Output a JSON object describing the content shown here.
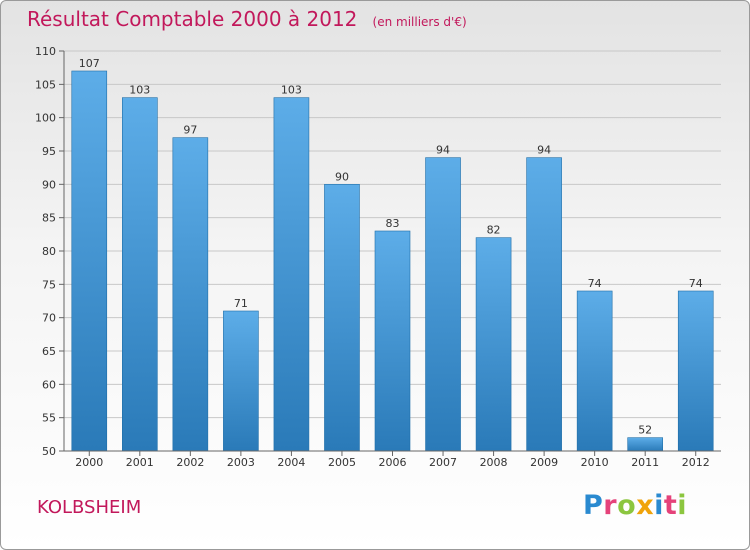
{
  "chart_data": {
    "type": "bar",
    "title": "Résultat Comptable 2000 à 2012",
    "subtitle": "(en milliers d'€)",
    "categories": [
      "2000",
      "2001",
      "2002",
      "2003",
      "2004",
      "2005",
      "2006",
      "2007",
      "2008",
      "2009",
      "2010",
      "2011",
      "2012"
    ],
    "values": [
      107,
      103,
      97,
      71,
      103,
      90,
      83,
      94,
      82,
      94,
      74,
      52,
      74
    ],
    "ylim": [
      50,
      110
    ],
    "yticks": [
      50,
      55,
      60,
      65,
      70,
      75,
      80,
      85,
      90,
      95,
      100,
      105,
      110
    ],
    "grid": true,
    "colors": {
      "bar_top": "#5dade8",
      "bar_bottom": "#2a7ab8",
      "title": "#c2185b"
    }
  },
  "footer": {
    "commune": "KOLBSHEIM",
    "logo": "Proxiti",
    "logo_colors": [
      "#2a8ad0",
      "#e5427a",
      "#8cc63f",
      "#f0a30a",
      "#2a8ad0",
      "#e5427a",
      "#8cc63f"
    ]
  }
}
